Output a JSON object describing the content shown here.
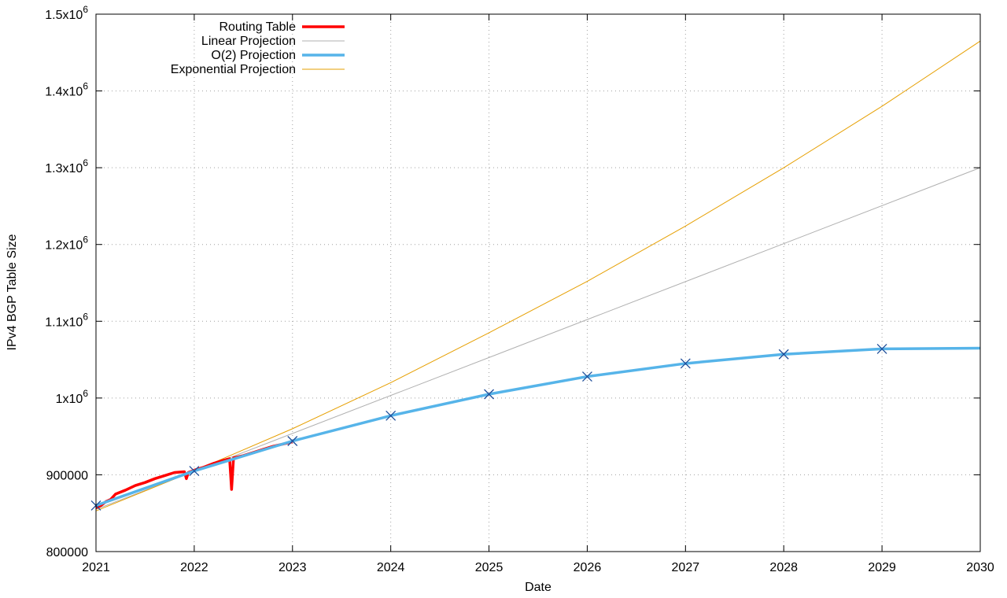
{
  "chart_data": {
    "type": "line",
    "xlabel": "Date",
    "ylabel": "IPv4 BGP Table Size",
    "xlim": [
      2021,
      2030
    ],
    "ylim": [
      800000,
      1500000
    ],
    "grid": true,
    "legend_position": "top-left",
    "x_ticks": [
      2021,
      2022,
      2023,
      2024,
      2025,
      2026,
      2027,
      2028,
      2029,
      2030
    ],
    "x_tick_labels": [
      "2021",
      "2022",
      "2023",
      "2024",
      "2025",
      "2026",
      "2027",
      "2028",
      "2029",
      "2030"
    ],
    "y_ticks": [
      800000,
      900000,
      1000000,
      1100000,
      1200000,
      1300000,
      1400000,
      1500000
    ],
    "y_tick_labels": [
      {
        "base": "800000",
        "exp": ""
      },
      {
        "base": "900000",
        "exp": ""
      },
      {
        "base": "1x10",
        "exp": "6"
      },
      {
        "base": "1.1x10",
        "exp": "6"
      },
      {
        "base": "1.2x10",
        "exp": "6"
      },
      {
        "base": "1.3x10",
        "exp": "6"
      },
      {
        "base": "1.4x10",
        "exp": "6"
      },
      {
        "base": "1.5x10",
        "exp": "6"
      }
    ],
    "series": [
      {
        "name": "Routing Table",
        "color": "#ff0000",
        "style": "thick",
        "x": [
          2021.0,
          2021.05,
          2021.1,
          2021.15,
          2021.2,
          2021.3,
          2021.4,
          2021.5,
          2021.6,
          2021.7,
          2021.8,
          2021.9,
          2021.92,
          2021.94,
          2022.0,
          2022.1,
          2022.2,
          2022.3,
          2022.36,
          2022.38,
          2022.4,
          2022.5,
          2022.6,
          2022.7,
          2022.8,
          2022.9,
          2023.0
        ],
        "y": [
          857000,
          860000,
          865000,
          868000,
          875000,
          880000,
          886000,
          890000,
          895000,
          899000,
          903000,
          904000,
          895000,
          903000,
          906000,
          910000,
          915000,
          919000,
          921000,
          881000,
          922000,
          925000,
          929000,
          933000,
          937000,
          940000,
          943000
        ]
      },
      {
        "name": "Linear Projection",
        "color": "#b0b0b0",
        "style": "thin",
        "x": [
          2021,
          2030
        ],
        "y": [
          855000,
          1300000
        ]
      },
      {
        "name": "O(2) Projection",
        "color": "#56b4e9",
        "style": "thick",
        "x": [
          2021,
          2022,
          2023,
          2024,
          2025,
          2026,
          2027,
          2028,
          2029,
          2030
        ],
        "y": [
          860000,
          905000,
          944000,
          977000,
          1005000,
          1028000,
          1045000,
          1057000,
          1064000,
          1065000
        ],
        "markers": [
          2021,
          2022,
          2023,
          2024,
          2025,
          2026,
          2027,
          2028,
          2029
        ]
      },
      {
        "name": "Exponential Projection",
        "color": "#e69f00",
        "style": "thin",
        "x": [
          2021,
          2022,
          2023,
          2024,
          2025,
          2026,
          2027,
          2028,
          2029,
          2030
        ],
        "y": [
          853000,
          905000,
          960000,
          1020000,
          1085000,
          1152000,
          1224000,
          1300000,
          1380000,
          1465000
        ]
      }
    ]
  }
}
